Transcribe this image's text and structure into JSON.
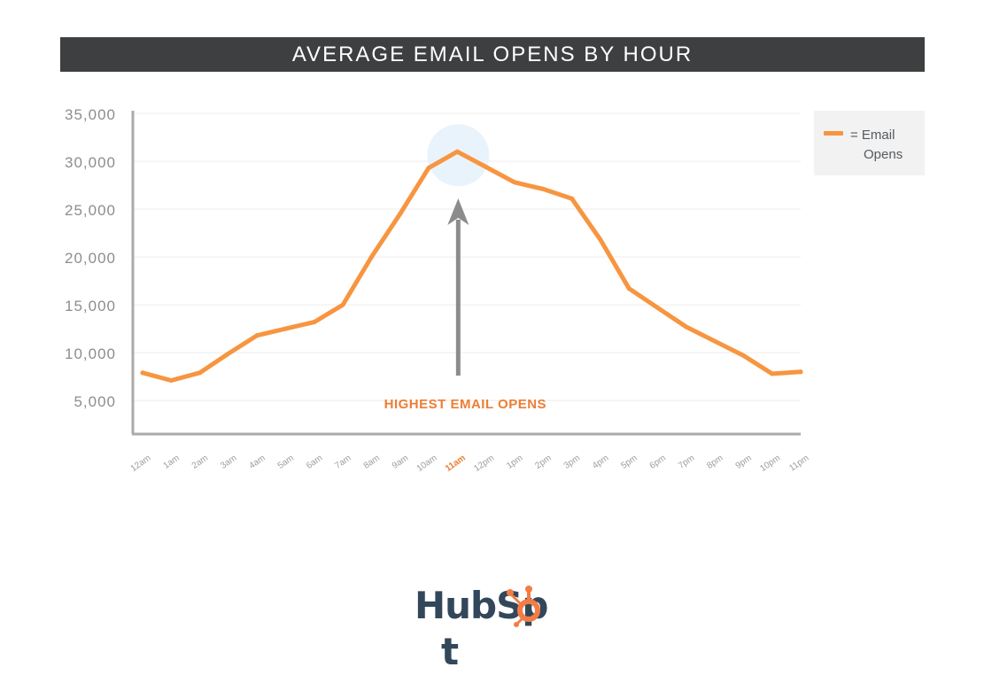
{
  "chart_data": {
    "type": "line",
    "title": "AVERAGE EMAIL OPENS BY HOUR",
    "categories": [
      "12am",
      "1am",
      "2am",
      "3am",
      "4am",
      "5am",
      "6am",
      "7am",
      "8am",
      "9am",
      "10am",
      "11am",
      "12pm",
      "1pm",
      "2pm",
      "3pm",
      "4pm",
      "5pm",
      "6pm",
      "7pm",
      "8pm",
      "9pm",
      "10pm",
      "11pm"
    ],
    "series": [
      {
        "name": "= Email Opens",
        "color": "#f79540",
        "values": [
          7900,
          7100,
          7900,
          9900,
          11800,
          12500,
          13200,
          15000,
          20000,
          24500,
          29300,
          31000,
          29400,
          27800,
          27100,
          26100,
          21800,
          16700,
          14700,
          12700,
          11200,
          9700,
          7800,
          8000
        ]
      }
    ],
    "y_ticks": [
      "5,000",
      "10,000",
      "15,000",
      "20,000",
      "25,000",
      "30,000",
      "35,000"
    ],
    "y_tick_values": [
      5000,
      10000,
      15000,
      20000,
      25000,
      30000,
      35000
    ],
    "ylim": [
      1500,
      35000
    ],
    "grid": true,
    "legend_position": "top-right",
    "highlight": {
      "category": "11am",
      "label": "HIGHEST EMAIL OPENS",
      "color": "#ee7d34",
      "circle_color": "#e9f3fb",
      "arrow_color": "#8c8c8c"
    },
    "axis_color": "#aaaaaa",
    "tick_label_color": "#8a8e91"
  },
  "legend": {
    "line1": "= Email",
    "line2": "Opens"
  },
  "logo": {
    "text": "HubSp",
    "text_end": "t",
    "brand_color": "#33475b",
    "accent_color": "#f37c45"
  }
}
